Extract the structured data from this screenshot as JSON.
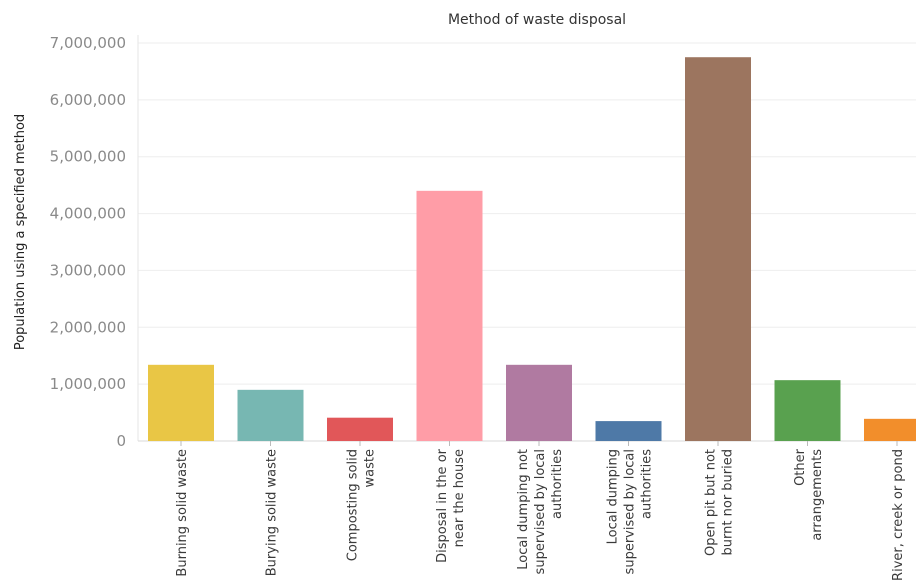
{
  "chart_data": {
    "type": "bar",
    "title": "Method of waste disposal",
    "ylabel": "Population using a specified method",
    "xlabel": "",
    "ylim": [
      0,
      7000000
    ],
    "yticks": [
      0,
      1000000,
      2000000,
      3000000,
      4000000,
      5000000,
      6000000,
      7000000
    ],
    "ytick_labels": [
      "0",
      "1,000,000",
      "2,000,000",
      "3,000,000",
      "4,000,000",
      "5,000,000",
      "6,000,000",
      "7,000,000"
    ],
    "grid": true,
    "categories": [
      [
        "Burning solid waste"
      ],
      [
        "Burying solid waste"
      ],
      [
        "Composting solid",
        "waste"
      ],
      [
        "Disposal in the or",
        "near the house"
      ],
      [
        "Local dumping not",
        "supervised by local",
        "authorities"
      ],
      [
        "Local dumping",
        "supervised by local",
        "authorities"
      ],
      [
        "Open pit but not",
        "burnt nor buried"
      ],
      [
        "Other",
        "arrangements"
      ],
      [
        "River, creek or pond"
      ]
    ],
    "values": [
      1340000,
      900000,
      410000,
      4400000,
      1340000,
      350000,
      6750000,
      1070000,
      390000
    ],
    "colors": [
      "#E9C645",
      "#77B7B2",
      "#E15759",
      "#FF9DA7",
      "#B07AA1",
      "#4E79A7",
      "#9C755F",
      "#59A14F",
      "#F28E2B"
    ]
  }
}
